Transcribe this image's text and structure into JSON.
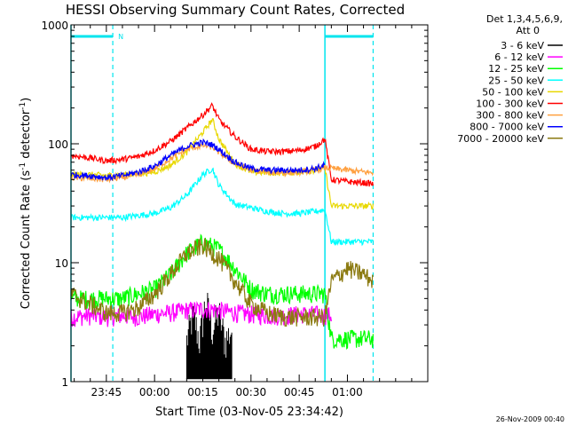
{
  "title": "HESSI Observing Summary Count Rates, Corrected",
  "footer_date": "26-Nov-2009 00:40",
  "chart_data": {
    "type": "line",
    "title": "HESSI Observing Summary Count Rates, Corrected",
    "xlabel": "Start Time (03-Nov-05 23:34:42)",
    "ylabel": "Corrected Count Rate (s⁻¹ detector⁻¹)",
    "ylabel_main": "Corrected Count Rate (s",
    "ylabel_sup1": "-1",
    "ylabel_mid": " detector",
    "ylabel_sup2": "-1",
    "ylabel_end": ")",
    "yscale": "log",
    "ylim": [
      1,
      1000
    ],
    "xlim_minutes": [
      -16,
      95
    ],
    "x_ticks": [
      "23:45",
      "00:00",
      "00:15",
      "00:30",
      "00:45",
      "01:00"
    ],
    "x_tick_minutes": [
      -5,
      10,
      25,
      40,
      55,
      70
    ],
    "y_ticks": [
      "1",
      "10",
      "100",
      "1000"
    ],
    "y_tick_values": [
      1,
      10,
      100,
      1000
    ],
    "legend": {
      "position": "right",
      "header": [
        "Det 1,3,4,5,6,9,",
        "Att 0"
      ]
    },
    "annotations": {
      "night_label": "N",
      "night_bars": [
        [
          -16,
          -3
        ],
        [
          63,
          78
        ]
      ],
      "night_level": 800,
      "vlines_solid": [
        -16,
        63
      ],
      "vlines_dashed": [
        -3,
        78
      ]
    },
    "series": [
      {
        "name": "3 - 6 keV",
        "color": "#000000",
        "style": "spiky",
        "x": [
          20,
          22,
          24,
          26,
          28,
          30,
          32,
          34
        ],
        "y": [
          2,
          3.4,
          2,
          4.5,
          2.5,
          3.5,
          2,
          2.5
        ]
      },
      {
        "name": "6 - 12 keV",
        "color": "#ff00ff",
        "x": [
          -16,
          -10,
          -5,
          0,
          5,
          10,
          15,
          20,
          25,
          30,
          35,
          40,
          45,
          50,
          55,
          60,
          65
        ],
        "y": [
          3.5,
          3.6,
          3.5,
          3.6,
          3.5,
          3.7,
          3.8,
          4.0,
          4.1,
          4.0,
          3.8,
          3.7,
          3.6,
          3.6,
          3.7,
          3.7,
          3.6
        ]
      },
      {
        "name": "12 - 25 keV",
        "color": "#00ff00",
        "x": [
          -16,
          -10,
          -5,
          0,
          5,
          10,
          15,
          20,
          25,
          30,
          35,
          40,
          45,
          50,
          55,
          60,
          63,
          65,
          70,
          75,
          78
        ],
        "y": [
          5,
          5,
          5,
          5,
          5.5,
          6,
          8,
          12,
          15,
          13,
          9,
          6,
          5.5,
          5.5,
          5.5,
          5.5,
          5.5,
          2.3,
          2.3,
          2.3,
          2.3
        ]
      },
      {
        "name": "25 - 50 keV",
        "color": "#00ffff",
        "x": [
          -16,
          -10,
          -5,
          0,
          5,
          10,
          15,
          20,
          25,
          28,
          30,
          35,
          40,
          45,
          50,
          55,
          60,
          63,
          65,
          70,
          75,
          78
        ],
        "y": [
          24,
          24,
          24,
          24,
          25,
          26,
          29,
          37,
          55,
          62,
          45,
          31,
          29,
          27,
          26,
          26,
          27,
          28,
          15,
          15,
          15,
          15
        ]
      },
      {
        "name": "50 - 100 keV",
        "color": "#e8d800",
        "x": [
          -16,
          -10,
          -5,
          0,
          5,
          10,
          15,
          20,
          25,
          28,
          30,
          35,
          40,
          45,
          50,
          55,
          60,
          63,
          65,
          70,
          75,
          78
        ],
        "y": [
          55,
          55,
          54,
          55,
          56,
          58,
          66,
          85,
          125,
          160,
          110,
          68,
          58,
          57,
          57,
          58,
          60,
          62,
          30,
          30,
          30,
          30
        ]
      },
      {
        "name": "100 - 300 keV",
        "color": "#ff0000",
        "x": [
          -16,
          -10,
          -5,
          0,
          5,
          10,
          15,
          20,
          25,
          28,
          30,
          35,
          40,
          45,
          50,
          55,
          60,
          63,
          65,
          70,
          75,
          78
        ],
        "y": [
          80,
          76,
          72,
          74,
          78,
          88,
          105,
          135,
          175,
          210,
          160,
          115,
          90,
          86,
          86,
          88,
          95,
          110,
          50,
          48,
          47,
          46
        ]
      },
      {
        "name": "300 - 800 keV",
        "color": "#ffa040",
        "x": [
          -16,
          -10,
          -5,
          0,
          5,
          10,
          15,
          20,
          25,
          28,
          30,
          35,
          40,
          45,
          50,
          55,
          60,
          63,
          65,
          70,
          75,
          78
        ],
        "y": [
          52,
          51,
          50,
          52,
          55,
          62,
          75,
          90,
          97,
          94,
          85,
          68,
          60,
          58,
          57,
          58,
          60,
          63,
          62,
          60,
          58,
          57
        ]
      },
      {
        "name": "800 - 7000 keV",
        "color": "#0000ff",
        "x": [
          -16,
          -10,
          -5,
          0,
          5,
          10,
          15,
          20,
          25,
          28,
          30,
          35,
          40,
          45,
          50,
          55,
          60,
          63
        ],
        "y": [
          55,
          54,
          52,
          54,
          58,
          65,
          80,
          95,
          103,
          98,
          90,
          70,
          62,
          60,
          60,
          60,
          62,
          66
        ]
      },
      {
        "name": "7000 - 20000 keV",
        "color": "#8b7a10",
        "x": [
          -16,
          -10,
          -5,
          0,
          5,
          10,
          15,
          20,
          25,
          30,
          35,
          40,
          45,
          50,
          55,
          60,
          63,
          65,
          70,
          75,
          78
        ],
        "y": [
          5.5,
          4.5,
          3.8,
          3.8,
          4.2,
          5.5,
          8,
          12,
          14,
          11,
          7,
          4.5,
          3.8,
          3.5,
          3.5,
          3.5,
          3.5,
          7,
          9,
          8,
          7
        ]
      }
    ]
  }
}
